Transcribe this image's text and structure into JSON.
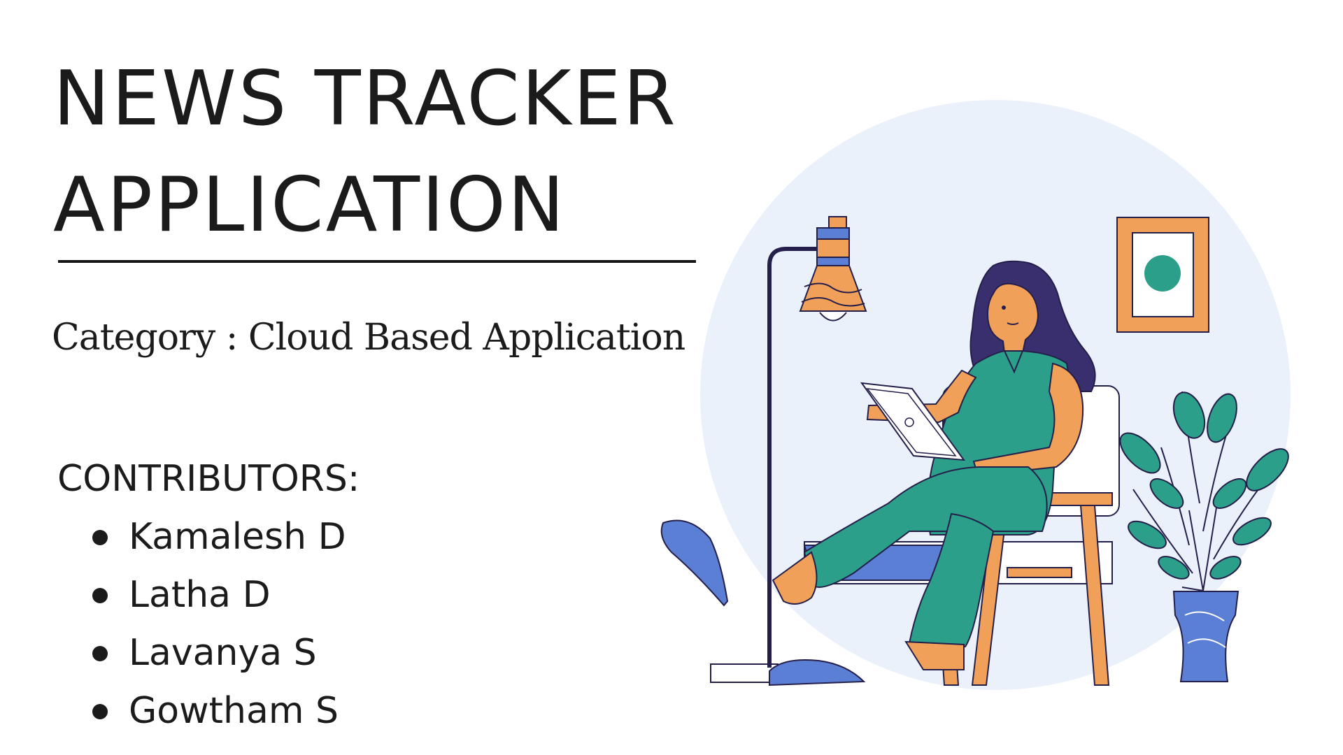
{
  "title": {
    "line1": "NEWS TRACKER",
    "line2": "APPLICATION"
  },
  "category": "Category : Cloud Based Application",
  "contributors": {
    "heading": "CONTRIBUTORS:",
    "names": [
      "Kamalesh D",
      "Latha D",
      "Lavanya S",
      "Gowtham S"
    ]
  },
  "colors": {
    "text": "#1b1b1b",
    "circle_bg": "#eaf1fb",
    "teal": "#2c9f8a",
    "orange": "#f0a058",
    "blue": "#5b7fd4",
    "hair": "#3a2f6e",
    "outline": "#241f4a"
  },
  "illustration": {
    "subject": "woman-reading-tablet-on-chair",
    "icons": [
      "floor-lamp-icon",
      "wall-frame-icon",
      "potted-plant-icon",
      "tablet-icon",
      "chair-icon"
    ]
  }
}
